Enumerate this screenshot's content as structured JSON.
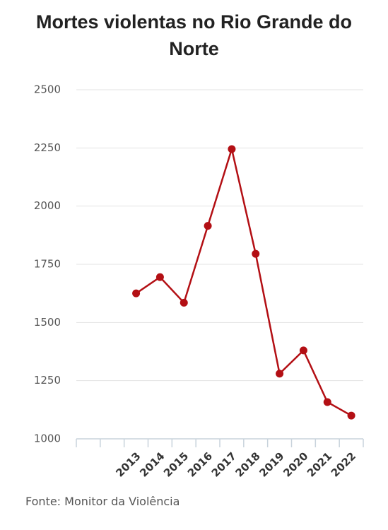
{
  "chart_data": {
    "type": "line",
    "title": "Mortes violentas no Rio Grande do Norte",
    "categories": [
      null,
      null,
      "2013",
      "2014",
      "2015",
      "2016",
      "2017",
      "2018",
      "2019",
      "2020",
      "2021",
      "2022"
    ],
    "series": [
      {
        "name": "Mortes violentas",
        "color": "#b30f14",
        "values": [
          null,
          null,
          1625,
          1695,
          1585,
          1915,
          2245,
          1795,
          1280,
          1380,
          1158,
          1100
        ]
      }
    ],
    "ylim": [
      1000,
      2500
    ],
    "yticks": [
      1000,
      1250,
      1500,
      1750,
      2000,
      2250,
      2500
    ],
    "grid": true,
    "source": "Fonte: Monitor da Violência"
  }
}
